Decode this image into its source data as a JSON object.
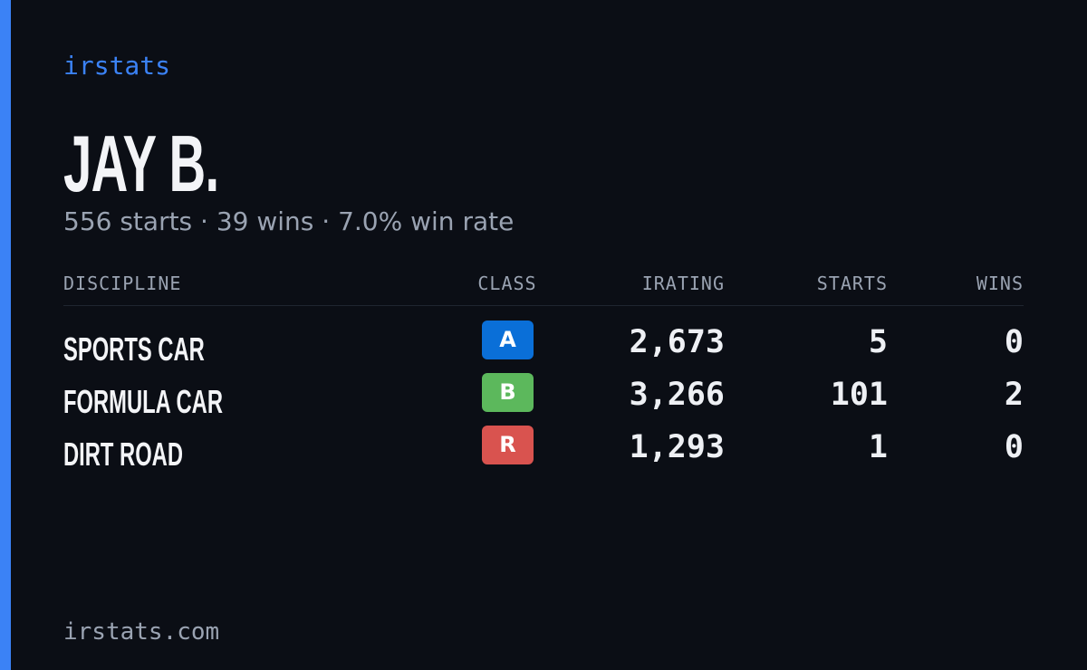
{
  "brand": "irstats",
  "profile": {
    "name": "JAY B.",
    "summary": "556 starts · 39 wins · 7.0% win rate"
  },
  "table": {
    "columns": [
      "DISCIPLINE",
      "CLASS",
      "IRATING",
      "STARTS",
      "WINS"
    ],
    "rows": [
      [
        "SPORTS CAR",
        "A",
        "2,673",
        "5",
        "0"
      ],
      [
        "FORMULA CAR",
        "B",
        "3,266",
        "101",
        "2"
      ],
      [
        "DIRT ROAD",
        "R",
        "1,293",
        "1",
        "0"
      ]
    ]
  },
  "footer": "irstats.com"
}
